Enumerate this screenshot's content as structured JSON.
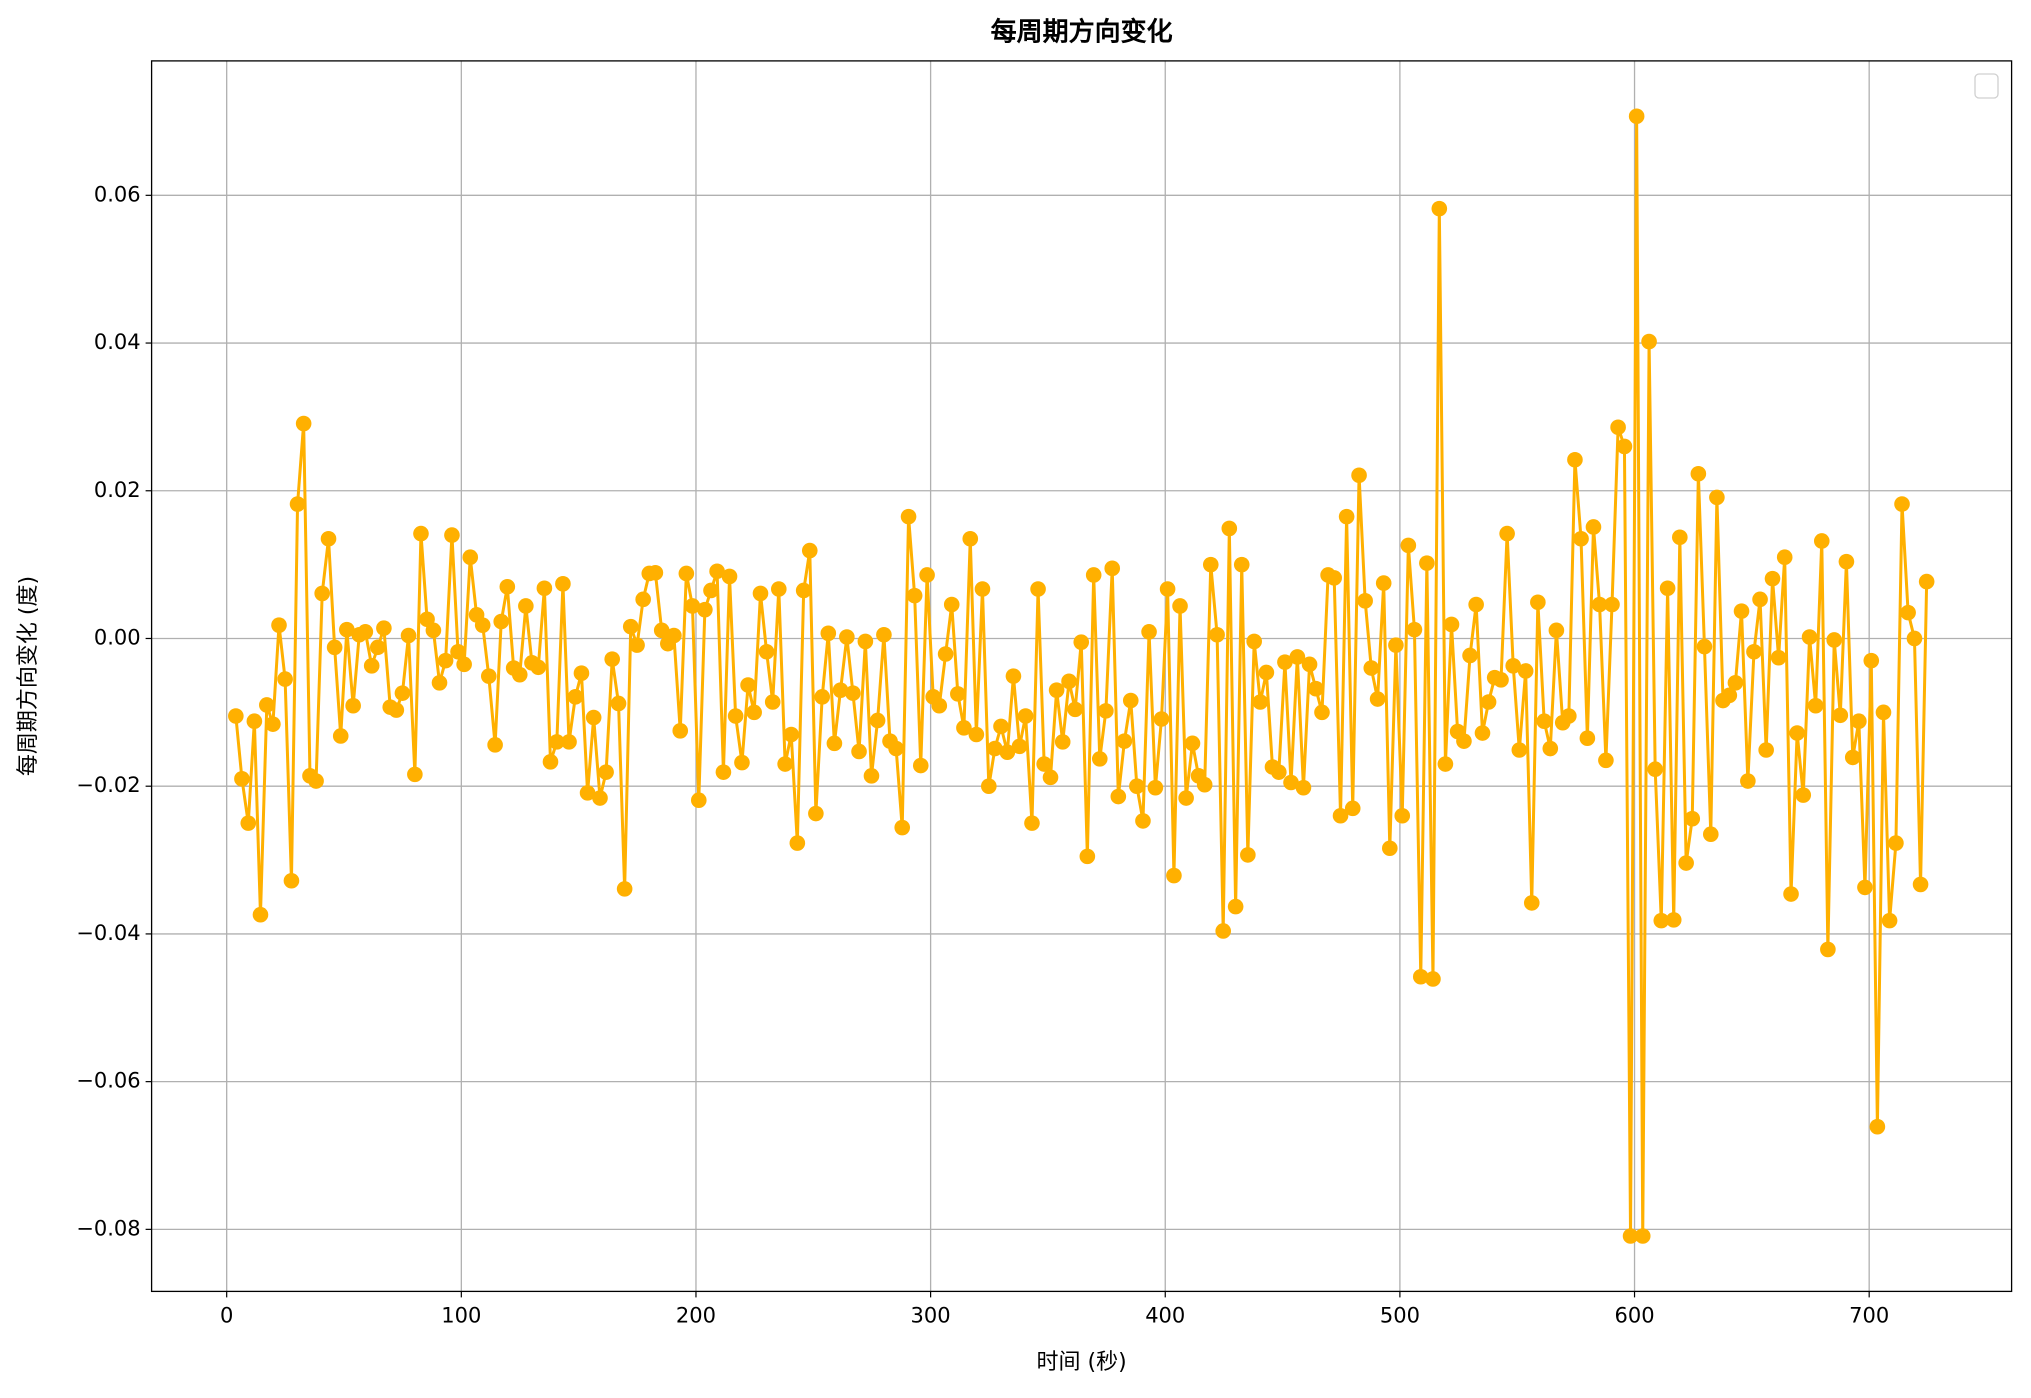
{
  "chart_data": {
    "type": "line",
    "title": "每周期方向变化",
    "x_label": "时间 (秒)",
    "y_label": "每周期方向变化 (度)",
    "grid": true,
    "xlim": [
      -32.0,
      760.7
    ],
    "ylim": [
      -0.0884,
      0.0782
    ],
    "xticks": [
      0,
      100,
      200,
      300,
      400,
      500,
      600,
      700
    ],
    "yticks": [
      {
        "value": -0.08,
        "label": "−0.08"
      },
      {
        "value": -0.06,
        "label": "−0.06"
      },
      {
        "value": -0.04,
        "label": "−0.04"
      },
      {
        "value": -0.02,
        "label": "−0.02"
      },
      {
        "value": 0,
        "label": "0.00"
      },
      {
        "value": 0.02,
        "label": "0.02"
      },
      {
        "value": 0.04,
        "label": "0.04"
      },
      {
        "value": 0.06,
        "label": "0.06"
      }
    ],
    "x": [
      3.9,
      6.5,
      9.2,
      11.8,
      14.4,
      17.1,
      19.7,
      22.3,
      24.9,
      27.6,
      30.2,
      32.8,
      35.5,
      38.1,
      40.7,
      43.4,
      46.0,
      48.6,
      51.2,
      53.9,
      56.5,
      59.1,
      61.8,
      64.4,
      67.0,
      69.7,
      72.3,
      74.9,
      77.5,
      80.2,
      82.8,
      85.4,
      88.1,
      90.7,
      93.3,
      96.0,
      98.6,
      101.2,
      103.8,
      106.5,
      109.1,
      111.7,
      114.4,
      117.0,
      119.6,
      122.3,
      124.9,
      127.5,
      130.1,
      132.8,
      135.4,
      138.0,
      140.7,
      143.3,
      145.9,
      148.6,
      151.2,
      153.8,
      156.4,
      159.1,
      161.7,
      164.3,
      167.0,
      169.6,
      172.2,
      174.9,
      177.5,
      180.1,
      182.7,
      185.4,
      188.0,
      190.6,
      193.3,
      195.9,
      198.5,
      201.2,
      203.8,
      206.4,
      209.0,
      211.7,
      214.3,
      216.9,
      219.6,
      222.2,
      224.8,
      227.5,
      230.1,
      232.7,
      235.3,
      238.0,
      240.6,
      243.2,
      245.9,
      248.5,
      251.1,
      253.8,
      256.4,
      259.0,
      261.6,
      264.3,
      266.9,
      269.5,
      272.2,
      274.8,
      277.4,
      280.1,
      282.7,
      285.3,
      287.9,
      290.6,
      293.2,
      295.8,
      298.5,
      301.1,
      303.7,
      306.4,
      309.0,
      311.6,
      314.2,
      316.9,
      319.5,
      322.1,
      324.8,
      327.4,
      330.0,
      332.7,
      335.3,
      337.9,
      340.5,
      343.2,
      345.8,
      348.4,
      351.1,
      353.7,
      356.3,
      359.0,
      361.6,
      364.2,
      366.8,
      369.5,
      372.1,
      374.7,
      377.4,
      380.0,
      382.6,
      385.3,
      387.9,
      390.5,
      393.1,
      395.8,
      398.4,
      401.0,
      403.7,
      406.3,
      408.9,
      411.6,
      414.2,
      416.8,
      419.4,
      422.1,
      424.7,
      427.3,
      430.0,
      432.6,
      435.2,
      437.9,
      440.5,
      443.1,
      445.7,
      448.4,
      451.0,
      453.6,
      456.3,
      458.9,
      461.5,
      464.2,
      466.8,
      469.4,
      472.0,
      474.7,
      477.3,
      479.9,
      482.6,
      485.2,
      487.8,
      490.5,
      493.1,
      495.7,
      498.3,
      501.0,
      503.6,
      506.2,
      508.9,
      511.5,
      514.1,
      516.8,
      519.4,
      522.0,
      524.6,
      527.3,
      529.9,
      532.5,
      535.2,
      537.8,
      540.4,
      543.1,
      545.7,
      548.3,
      550.9,
      553.6,
      556.2,
      558.8,
      561.5,
      564.1,
      566.7,
      569.4,
      572.0,
      574.6,
      577.2,
      579.9,
      582.5,
      585.1,
      587.8,
      590.4,
      593.0,
      595.7,
      598.3,
      600.9,
      603.5,
      606.2,
      608.8,
      611.4,
      614.1,
      616.7,
      619.3,
      622.0,
      624.6,
      627.2,
      629.8,
      632.5,
      635.1,
      637.7,
      640.4,
      643.0,
      645.6,
      648.3,
      650.9,
      653.5,
      656.1,
      658.8,
      661.4,
      664.0,
      666.7,
      669.3,
      671.9,
      674.6,
      677.2,
      679.8,
      682.4,
      685.1,
      687.7,
      690.3,
      693.0,
      695.6,
      698.2,
      700.9,
      703.5,
      706.1,
      708.7,
      711.4,
      714.0,
      716.6,
      719.3,
      721.9,
      724.5
    ],
    "series": [
      {
        "color": "#ffb000",
        "values": [
          -0.0105,
          -0.019,
          -0.025,
          -0.0112,
          -0.0374,
          -0.009,
          -0.0116,
          0.0018,
          -0.0055,
          -0.0328,
          0.0182,
          0.0291,
          -0.0186,
          -0.0193,
          0.0061,
          0.0135,
          -0.0012,
          -0.0132,
          0.0012,
          -0.0091,
          0.0005,
          0.0009,
          -0.0037,
          -0.0012,
          0.0014,
          -0.0093,
          -0.0097,
          -0.0074,
          0.0004,
          -0.0184,
          0.0142,
          0.0026,
          0.0011,
          -0.006,
          -0.003,
          0.014,
          -0.0018,
          -0.0035,
          0.011,
          0.0032,
          0.0018,
          -0.0051,
          -0.0144,
          0.0023,
          0.007,
          -0.004,
          -0.0049,
          0.0044,
          -0.0033,
          -0.0039,
          0.0068,
          -0.0167,
          -0.014,
          0.0074,
          -0.014,
          -0.0079,
          -0.0047,
          -0.0209,
          -0.0107,
          -0.0216,
          -0.0181,
          -0.0028,
          -0.0088,
          -0.0339,
          0.0016,
          -0.0009,
          0.0053,
          0.0088,
          0.0089,
          0.0011,
          -0.0007,
          0.0004,
          -0.0125,
          0.0088,
          0.0044,
          -0.0219,
          0.0039,
          0.0065,
          0.0091,
          -0.0181,
          0.0084,
          -0.0105,
          -0.0168,
          -0.0063,
          -0.01,
          0.0061,
          -0.0018,
          -0.0086,
          0.0067,
          -0.017,
          -0.013,
          -0.0277,
          0.0065,
          0.0119,
          -0.0237,
          -0.0079,
          0.0007,
          -0.0142,
          -0.007,
          0.0002,
          -0.0074,
          -0.0153,
          -0.0004,
          -0.0186,
          -0.0111,
          0.0005,
          -0.0139,
          -0.0149,
          -0.0256,
          0.0165,
          0.0058,
          -0.0172,
          0.0086,
          -0.0079,
          -0.0091,
          -0.0021,
          0.0046,
          -0.0075,
          -0.0121,
          0.0135,
          -0.013,
          0.0067,
          -0.02,
          -0.0149,
          -0.0119,
          -0.0154,
          -0.0051,
          -0.0146,
          -0.0105,
          -0.025,
          0.0067,
          -0.017,
          -0.0188,
          -0.007,
          -0.014,
          -0.0058,
          -0.0096,
          -0.0005,
          -0.0295,
          0.0086,
          -0.0163,
          -0.0098,
          0.0095,
          -0.0214,
          -0.0139,
          -0.0084,
          -0.02,
          -0.0247,
          0.0009,
          -0.0202,
          -0.0109,
          0.0067,
          -0.0321,
          0.0044,
          -0.0216,
          -0.0142,
          -0.0186,
          -0.0198,
          0.01,
          0.0005,
          -0.0396,
          0.0149,
          -0.0363,
          0.01,
          -0.0293,
          -0.0004,
          -0.0086,
          -0.0046,
          -0.0174,
          -0.0181,
          -0.0032,
          -0.0195,
          -0.0025,
          -0.0202,
          -0.0035,
          -0.0068,
          -0.01,
          0.0086,
          0.0082,
          -0.024,
          0.0165,
          -0.023,
          0.0221,
          0.0051,
          -0.004,
          -0.0082,
          0.0075,
          -0.0284,
          -0.0009,
          -0.024,
          0.0126,
          0.0012,
          -0.0458,
          0.0102,
          -0.0461,
          0.0582,
          -0.017,
          0.0019,
          -0.0126,
          -0.0139,
          -0.0023,
          0.0046,
          -0.0128,
          -0.0086,
          -0.0053,
          -0.0056,
          0.0142,
          -0.0037,
          -0.0151,
          -0.0044,
          -0.0358,
          0.0049,
          -0.0112,
          -0.0149,
          0.0011,
          -0.0114,
          -0.0105,
          0.0242,
          0.0135,
          -0.0135,
          0.0151,
          0.0046,
          -0.0165,
          0.0046,
          0.0286,
          0.026,
          -0.0809,
          0.0707,
          -0.0809,
          0.0402,
          -0.0177,
          -0.0382,
          0.0068,
          -0.0381,
          0.0137,
          -0.0304,
          -0.0244,
          0.0223,
          -0.0011,
          -0.0265,
          0.0191,
          -0.0084,
          -0.0077,
          -0.006,
          0.0037,
          -0.0193,
          -0.0018,
          0.0053,
          -0.0151,
          0.0081,
          -0.0026,
          0.011,
          -0.0346,
          -0.0128,
          -0.0212,
          0.0002,
          -0.0091,
          0.0132,
          -0.0421,
          -0.0002,
          -0.0104,
          0.0104,
          -0.0161,
          -0.0112,
          -0.0337,
          -0.003,
          -0.0661,
          -0.01,
          -0.0382,
          -0.0277,
          0.0182,
          0.0035,
          0,
          -0.0333,
          0.0077
        ]
      }
    ]
  }
}
